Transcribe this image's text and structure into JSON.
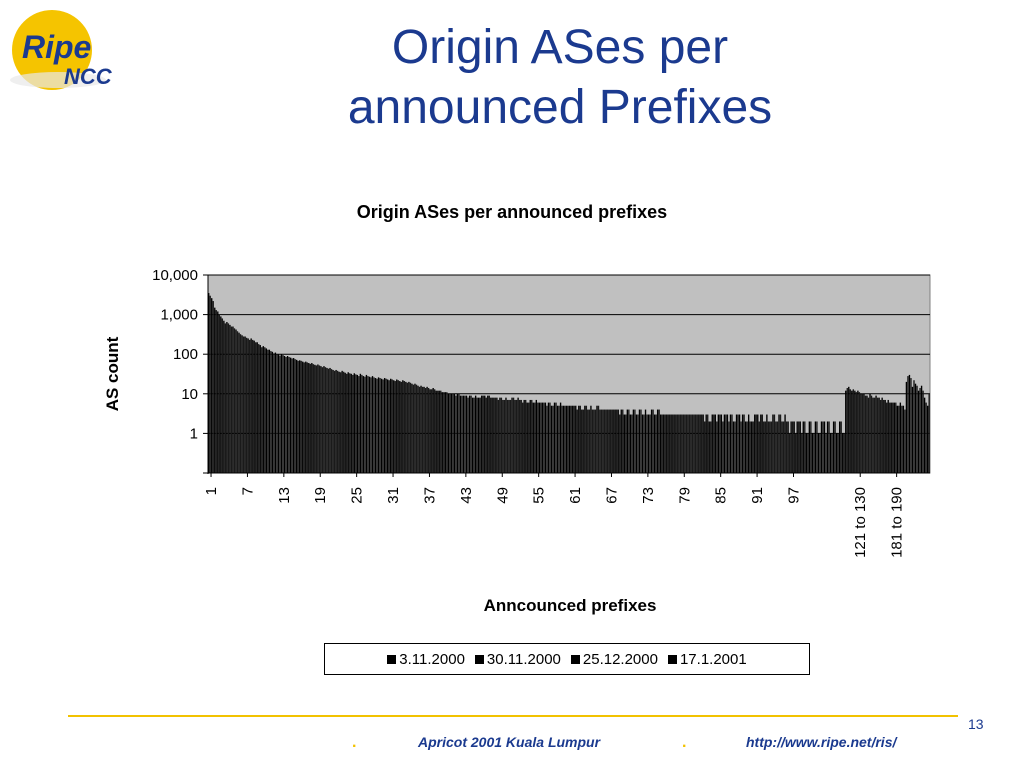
{
  "logo": {
    "line1": "Ripe",
    "line2": "NCC"
  },
  "slide": {
    "title_line1": "Origin ASes per",
    "title_line2": "announced Prefixes"
  },
  "footer": {
    "page_number": "13",
    "event": "Apricot 2001 Kuala Lumpur",
    "url": "http://www.ripe.net/ris/",
    "bullet": "."
  },
  "colors": {
    "title": "#1b3a8f",
    "accent": "#f2c200",
    "plot_bg": "#c0c0c0",
    "bars": "#000000"
  },
  "chart_data": {
    "type": "bar",
    "title": "Origin ASes per announced prefixes",
    "xlabel": "Anncounced prefixes",
    "ylabel": "AS count",
    "yscale": "log",
    "ylim": [
      0.1,
      10000
    ],
    "yticks": [
      1,
      10,
      100,
      1000,
      10000
    ],
    "ytick_labels": [
      "1",
      "10",
      "100",
      "1,000",
      "10,000"
    ],
    "xtick_labels": [
      "1",
      "7",
      "13",
      "19",
      "25",
      "31",
      "37",
      "43",
      "49",
      "55",
      "61",
      "67",
      "73",
      "79",
      "85",
      "91",
      "97",
      "121 to 130",
      "181 to 190"
    ],
    "xtick_category_index": [
      0,
      6,
      12,
      18,
      24,
      30,
      36,
      42,
      48,
      54,
      60,
      66,
      72,
      78,
      84,
      90,
      96,
      107,
      113
    ],
    "grid": true,
    "legend_position": "bottom",
    "series_names": [
      "3.11.2000",
      "30.11.2000",
      "25.12.2000",
      "17.1.2001"
    ],
    "category_count": 119,
    "series_values": [
      [
        3500,
        1500,
        900,
        650,
        500,
        350,
        280,
        250,
        200,
        160,
        130,
        110,
        100,
        90,
        80,
        70,
        65,
        60,
        55,
        50,
        45,
        40,
        38,
        35,
        33,
        32,
        30,
        28,
        26,
        25,
        24,
        23,
        22,
        20,
        18,
        16,
        15,
        14,
        12,
        11,
        10,
        10,
        9,
        9,
        9,
        9,
        9,
        8,
        8,
        8,
        8,
        8,
        7,
        7,
        7,
        6,
        6,
        6,
        6,
        5,
        5,
        5,
        5,
        5,
        5,
        4,
        4,
        4,
        4,
        4,
        4,
        4,
        4,
        4,
        4,
        3,
        3,
        3,
        3,
        3,
        3,
        3,
        3,
        3,
        3,
        3,
        3,
        3,
        3,
        3,
        3,
        3,
        3,
        3,
        3,
        3,
        2,
        2,
        2,
        2,
        2,
        2,
        2,
        2,
        2,
        12,
        12,
        12,
        10,
        10,
        9,
        8,
        7,
        6,
        6,
        20,
        15,
        12,
        8
      ],
      [
        3000,
        1300,
        800,
        600,
        450,
        320,
        260,
        230,
        180,
        150,
        120,
        100,
        95,
        85,
        75,
        68,
        62,
        56,
        52,
        47,
        42,
        38,
        36,
        33,
        31,
        30,
        28,
        26,
        25,
        24,
        23,
        22,
        21,
        19,
        17,
        15,
        14,
        13,
        12,
        11,
        10,
        10,
        9,
        9,
        8,
        9,
        9,
        8,
        8,
        7,
        8,
        7,
        7,
        7,
        6,
        6,
        6,
        6,
        5,
        5,
        5,
        5,
        5,
        4,
        5,
        4,
        4,
        4,
        4,
        4,
        4,
        4,
        3,
        4,
        4,
        3,
        3,
        3,
        3,
        3,
        3,
        3,
        3,
        3,
        3,
        3,
        3,
        3,
        3,
        2,
        3,
        3,
        2,
        3,
        3,
        2,
        2,
        2,
        2,
        2,
        2,
        2,
        2,
        2,
        2,
        14,
        13,
        11,
        9,
        9,
        8,
        7,
        6,
        6,
        5,
        28,
        22,
        14,
        6
      ],
      [
        2600,
        1200,
        700,
        550,
        420,
        300,
        250,
        220,
        170,
        140,
        115,
        98,
        90,
        82,
        72,
        65,
        60,
        54,
        50,
        45,
        40,
        36,
        34,
        32,
        30,
        28,
        27,
        25,
        24,
        23,
        22,
        21,
        20,
        18,
        16,
        15,
        13,
        12,
        11,
        10,
        10,
        9,
        9,
        8,
        8,
        9,
        8,
        8,
        7,
        7,
        7,
        7,
        6,
        6,
        6,
        6,
        5,
        5,
        5,
        5,
        5,
        4,
        4,
        4,
        4,
        4,
        4,
        4,
        3,
        3,
        3,
        3,
        3,
        3,
        3,
        3,
        3,
        3,
        3,
        3,
        3,
        3,
        2,
        3,
        3,
        3,
        2,
        3,
        2,
        2,
        3,
        2,
        2,
        2,
        2,
        2,
        2,
        2,
        1,
        1,
        1,
        2,
        1,
        1,
        1,
        15,
        12,
        10,
        9,
        8,
        8,
        7,
        6,
        5,
        5,
        30,
        18,
        16,
        5
      ],
      [
        2200,
        1000,
        600,
        500,
        380,
        280,
        230,
        200,
        150,
        130,
        105,
        92,
        85,
        78,
        68,
        62,
        57,
        52,
        47,
        43,
        38,
        35,
        32,
        30,
        28,
        27,
        26,
        24,
        23,
        22,
        21,
        20,
        19,
        17,
        15,
        14,
        13,
        12,
        11,
        10,
        9,
        9,
        8,
        8,
        8,
        8,
        8,
        7,
        7,
        7,
        7,
        6,
        6,
        6,
        6,
        5,
        5,
        5,
        5,
        5,
        4,
        4,
        4,
        4,
        4,
        4,
        4,
        3,
        3,
        3,
        3,
        3,
        3,
        3,
        3,
        3,
        3,
        3,
        3,
        3,
        3,
        2,
        2,
        2,
        2,
        2,
        2,
        2,
        2,
        2,
        2,
        2,
        2,
        2,
        2,
        1,
        1,
        1,
        1,
        1,
        1,
        1,
        1,
        1,
        1,
        13,
        11,
        10,
        8,
        8,
        7,
        6,
        6,
        5,
        4,
        25,
        16,
        12,
        10
      ]
    ]
  }
}
